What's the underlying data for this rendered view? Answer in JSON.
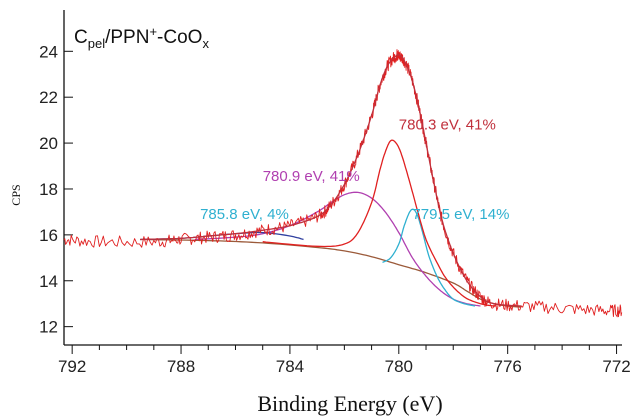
{
  "chart_data": {
    "type": "line",
    "title": {
      "main": "C",
      "sub1": "pel",
      "mid": "/PPN",
      "sup": "+",
      "end": "-CoO",
      "sub2": "x"
    },
    "xlabel": "Binding Energy (eV)",
    "ylabel": "CPS",
    "xlim": [
      792.3,
      771.8
    ],
    "ylim": [
      11.2,
      25.8
    ],
    "x_reversed": true,
    "x_ticks": [
      792,
      788,
      784,
      780,
      776,
      772
    ],
    "y_ticks": [
      12,
      14,
      16,
      18,
      20,
      22,
      24
    ],
    "series": [
      {
        "color": "#e02020",
        "kind": "raw_noisy",
        "x": [
          792.3,
          791,
          789,
          788,
          787,
          786,
          785,
          784,
          783,
          782.5,
          782,
          781.5,
          781,
          780.7,
          780.4,
          780.1,
          780,
          779.8,
          779.5,
          779.2,
          779,
          778.7,
          778.4,
          778,
          777.5,
          777,
          776.5,
          775.5,
          774,
          772.5,
          771.8
        ],
        "values": [
          15.8,
          15.7,
          15.7,
          15.8,
          15.9,
          16.0,
          16.2,
          16.4,
          16.8,
          17.3,
          18.2,
          19.5,
          21.2,
          22.5,
          23.4,
          23.8,
          23.8,
          23.6,
          22.7,
          21.2,
          20.0,
          18.2,
          16.6,
          15.2,
          14.0,
          13.3,
          13.0,
          12.9,
          12.8,
          12.7,
          12.7
        ]
      },
      {
        "color": "#c0303c",
        "kind": "envelope",
        "x": [
          789.5,
          788,
          787,
          786,
          785,
          784,
          783,
          782.5,
          782,
          781.5,
          781,
          780.7,
          780.4,
          780.1,
          780,
          779.8,
          779.5,
          779.2,
          779,
          778.7,
          778.4,
          778,
          777.5,
          777,
          776.5,
          775.5
        ],
        "values": [
          15.8,
          15.85,
          15.95,
          16.05,
          16.2,
          16.4,
          16.8,
          17.3,
          18.2,
          19.5,
          21.2,
          22.5,
          23.4,
          23.8,
          23.85,
          23.6,
          22.7,
          21.2,
          20.0,
          18.2,
          16.6,
          15.2,
          14.0,
          13.3,
          13.0,
          12.9
        ]
      },
      {
        "color": "#9b5a3a",
        "kind": "background",
        "x": [
          789.5,
          787,
          785,
          783,
          782,
          781,
          780,
          779,
          778,
          777.5,
          777,
          776.5,
          776,
          775.5
        ],
        "values": [
          15.8,
          15.75,
          15.65,
          15.45,
          15.3,
          15.05,
          14.7,
          14.35,
          13.9,
          13.55,
          13.2,
          13.0,
          12.9,
          12.85
        ]
      },
      {
        "color": "#e02020",
        "kind": "component",
        "x": [
          785,
          783,
          782,
          781.5,
          781,
          780.7,
          780.5,
          780.3,
          780.1,
          779.9,
          779.6,
          779.3,
          779,
          778.6,
          778.2,
          777.6,
          777,
          776.5
        ],
        "values": [
          15.7,
          15.5,
          15.6,
          16.1,
          17.4,
          18.8,
          19.6,
          20.1,
          20.0,
          19.5,
          18.3,
          17.0,
          15.8,
          14.8,
          14.0,
          13.3,
          13.0,
          12.9
        ]
      },
      {
        "color": "#b040b0",
        "kind": "component",
        "x": [
          787.5,
          786,
          785,
          784,
          783,
          782.5,
          782,
          781.5,
          781,
          780.5,
          780,
          779.5,
          779,
          778.5,
          778,
          777.5,
          777
        ],
        "values": [
          15.8,
          15.9,
          16.05,
          16.4,
          17.0,
          17.4,
          17.75,
          17.85,
          17.6,
          17.0,
          16.1,
          15.0,
          14.2,
          13.6,
          13.2,
          13.0,
          12.9
        ]
      },
      {
        "color": "#2fb0d0",
        "kind": "component",
        "x": [
          780.6,
          780.3,
          780,
          779.8,
          779.6,
          779.45,
          779.3,
          779.1,
          778.9,
          778.6,
          778.3,
          778,
          777.6,
          777.2
        ],
        "values": [
          14.8,
          15.0,
          15.6,
          16.4,
          17.0,
          17.1,
          16.8,
          16.0,
          15.1,
          14.2,
          13.6,
          13.2,
          13.0,
          12.9
        ]
      },
      {
        "color": "#3040a0",
        "kind": "component",
        "x": [
          789.5,
          788,
          787,
          786,
          785,
          784,
          783.5
        ],
        "values": [
          15.8,
          15.85,
          15.95,
          16.05,
          16.1,
          15.95,
          15.8
        ]
      }
    ],
    "annotations": [
      {
        "text": "780.3 eV, 41%",
        "x": 780.0,
        "y": 20.6,
        "color": "#c0303c"
      },
      {
        "text": "780.9 eV, 41%",
        "x": 785.0,
        "y": 18.35,
        "color": "#b040b0"
      },
      {
        "text": "785.8 eV, 4%",
        "x": 787.3,
        "y": 16.7,
        "color": "#2fb0d0"
      },
      {
        "text": "779.5 eV, 14%",
        "x": 779.5,
        "y": 16.7,
        "color": "#2fb0d0"
      }
    ],
    "grid": false,
    "legend": "none"
  }
}
